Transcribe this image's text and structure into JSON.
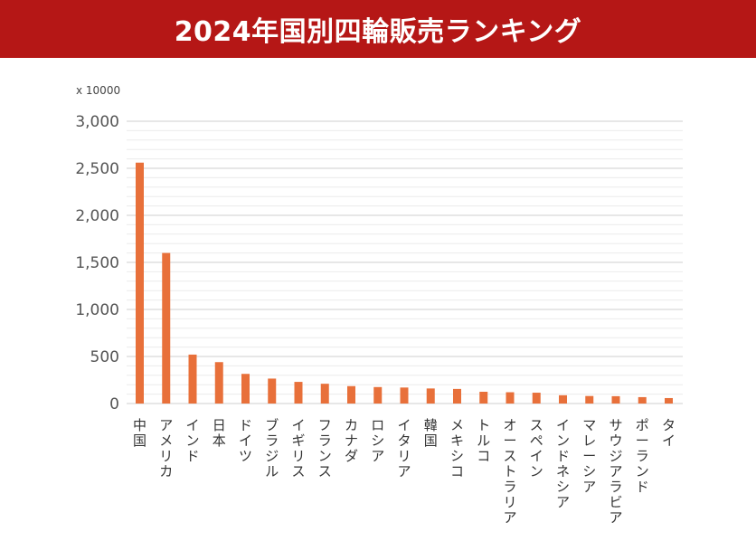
{
  "header": {
    "title": "2024年国別四輪販売ランキング",
    "background_color": "#b51716"
  },
  "chart_data": {
    "type": "bar",
    "title": "2024年国別四輪販売ランキング",
    "unit_note": "x 10000",
    "xlabel": "",
    "ylabel": "",
    "ylim": [
      0,
      3000
    ],
    "y_ticks": [
      "0",
      "500",
      "1,000",
      "1,500",
      "2,000",
      "2,500",
      "3,000"
    ],
    "y_tick_values": [
      0,
      500,
      1000,
      1500,
      2000,
      2500,
      3000
    ],
    "minor_grid_step": 100,
    "grid": true,
    "bar_color": "#e8703a",
    "categories": [
      "中国",
      "アメリカ",
      "インド",
      "日本",
      "ドイツ",
      "ブラジル",
      "イギリス",
      "フランス",
      "カナダ",
      "ロシア",
      "イタリア",
      "韓国",
      "メキシコ",
      "トルコ",
      "オーストラリア",
      "スペイン",
      "インドネシア",
      "マレーシア",
      "サウジアラビア",
      "ポーランド",
      "タイ"
    ],
    "values": [
      2560,
      1600,
      520,
      440,
      315,
      265,
      230,
      210,
      185,
      175,
      170,
      160,
      155,
      125,
      120,
      115,
      88,
      80,
      78,
      68,
      58
    ]
  }
}
